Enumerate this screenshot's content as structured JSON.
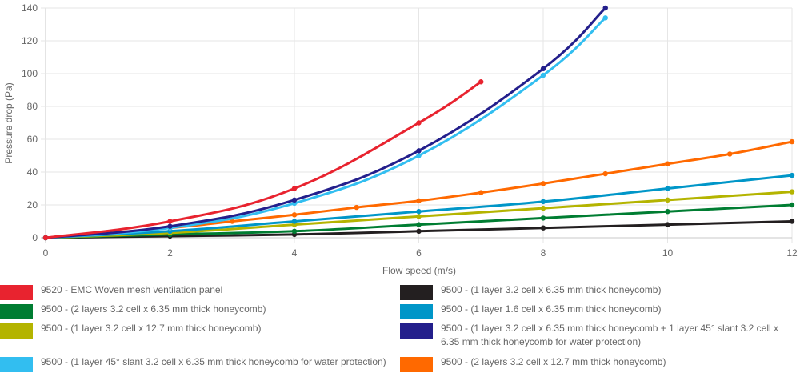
{
  "chart_data": {
    "type": "line",
    "title": "",
    "xlabel": "Flow speed (m/s)",
    "ylabel": "Pressure drop (Pa)",
    "xlim": [
      0,
      12
    ],
    "ylim": [
      0,
      140
    ],
    "x_ticks": [
      "0",
      "2",
      "4",
      "6",
      "8",
      "10",
      "12"
    ],
    "y_ticks": [
      "0",
      "20",
      "40",
      "60",
      "80",
      "100",
      "120",
      "140"
    ],
    "grid": true,
    "legend_position": "bottom",
    "series": [
      {
        "name": "9520 - EMC Woven mesh ventilation panel",
        "color": "#e8232f",
        "points": [
          [
            0,
            0
          ],
          [
            2,
            10
          ],
          [
            4,
            30
          ],
          [
            6,
            70
          ],
          [
            7,
            95
          ]
        ]
      },
      {
        "name": "9500 - (1 layer 3.2 cell x 6.35 mm thick honeycomb)",
        "color": "#231f20",
        "points": [
          [
            0,
            0
          ],
          [
            2,
            1
          ],
          [
            4,
            2
          ],
          [
            6,
            4
          ],
          [
            8,
            6
          ],
          [
            10,
            8
          ],
          [
            12,
            10
          ]
        ]
      },
      {
        "name": "9500 - (2 layers 3.2 cell x 6.35 mm thick honeycomb)",
        "color": "#007d32",
        "points": [
          [
            0,
            0
          ],
          [
            2,
            2
          ],
          [
            4,
            4
          ],
          [
            6,
            8
          ],
          [
            8,
            12
          ],
          [
            10,
            16
          ],
          [
            12,
            20
          ]
        ]
      },
      {
        "name": "9500 - (1 layer 1.6 cell x 6.35 mm thick honeycomb)",
        "color": "#0096c8",
        "points": [
          [
            0,
            0
          ],
          [
            2,
            4
          ],
          [
            4,
            10
          ],
          [
            6,
            16
          ],
          [
            8,
            22
          ],
          [
            10,
            30
          ],
          [
            12,
            38
          ]
        ]
      },
      {
        "name": "9500 - (1 layer 3.2 cell x 12.7 mm thick honeycomb)",
        "color": "#b4b400",
        "points": [
          [
            0,
            0
          ],
          [
            2,
            3
          ],
          [
            4,
            8
          ],
          [
            6,
            13
          ],
          [
            8,
            18
          ],
          [
            10,
            23
          ],
          [
            12,
            28
          ]
        ]
      },
      {
        "name": "9500 - (1 layer 3.2 cell x 6.35 mm thick honeycomb + 1 layer 45° slant 3.2 cell x 6.35 mm thick honeycomb for water protection)",
        "color": "#231f8c",
        "points": [
          [
            0,
            0
          ],
          [
            2,
            7
          ],
          [
            4,
            23
          ],
          [
            6,
            53
          ],
          [
            8,
            103
          ],
          [
            9,
            140
          ]
        ]
      },
      {
        "name": "9500 - (1 layer 45° slant 3.2 cell x 6.35 mm thick honeycomb for water protection)",
        "color": "#32bef0",
        "points": [
          [
            0,
            0
          ],
          [
            2,
            6
          ],
          [
            4,
            21
          ],
          [
            6,
            50
          ],
          [
            8,
            99
          ],
          [
            9,
            134
          ]
        ]
      },
      {
        "name": "9500 - (2 layers 3.2 cell x 12.7 mm thick honeycomb)",
        "color": "#ff6900",
        "points": [
          [
            0,
            0
          ],
          [
            2,
            6
          ],
          [
            3,
            10
          ],
          [
            4,
            14
          ],
          [
            5,
            18.5
          ],
          [
            6,
            22.5
          ],
          [
            7,
            27.5
          ],
          [
            8,
            33
          ],
          [
            9,
            39
          ],
          [
            10,
            45
          ],
          [
            11,
            51
          ],
          [
            12,
            58.5
          ]
        ]
      }
    ]
  }
}
